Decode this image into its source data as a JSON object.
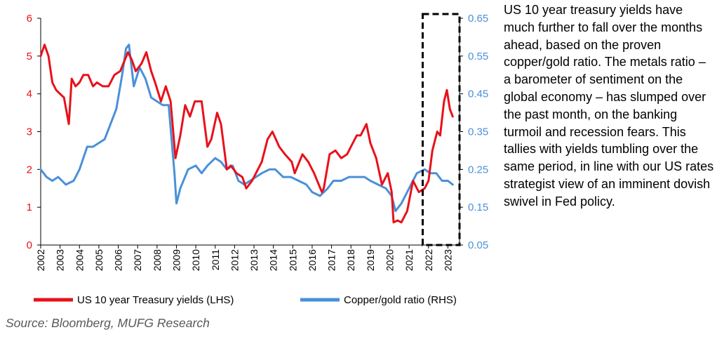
{
  "commentary": "US 10 year treasury yields have much further to fall over the months ahead, based on the proven copper/gold ratio. The metals ratio – a barometer of sentiment on the global economy – has slumped over the past month, on the banking turmoil and recession fears. This tallies with yields tumbling over the same period, in line with our US rates strategist view of an imminent dovish swivel in Fed policy.",
  "source": "Source: Bloomberg, MUFG Research",
  "colors": {
    "yields": "#e8111a",
    "ratio": "#4a90d9",
    "axis": "#000000",
    "highlight": "#000000"
  },
  "chart_data": {
    "type": "line",
    "title": "",
    "xlabel": "",
    "x_ticks": [
      "2002",
      "2003",
      "2004",
      "2005",
      "2006",
      "2007",
      "2008",
      "2009",
      "2010",
      "2011",
      "2012",
      "2013",
      "2014",
      "2015",
      "2016",
      "2017",
      "2018",
      "2019",
      "2020",
      "2021",
      "2022",
      "2023"
    ],
    "x_range": [
      2002,
      2023.6
    ],
    "left_axis": {
      "label": "US 10 year Treasury yields (LHS)",
      "ylim": [
        0,
        6
      ],
      "ticks": [
        "0",
        "1",
        "2",
        "3",
        "4",
        "5",
        "6"
      ]
    },
    "right_axis": {
      "label": "Copper/gold ratio (RHS)",
      "ylim": [
        0.05,
        0.65
      ],
      "ticks": [
        "0.05",
        "0.15",
        "0.25",
        "0.35",
        "0.45",
        "0.55",
        "0.65"
      ]
    },
    "highlight": {
      "x_start": 2021.7,
      "x_end": 2023.6,
      "style": "dashed box"
    },
    "series": [
      {
        "name": "US 10 year Treasury yields (LHS)",
        "axis": "left",
        "x": [
          2002.0,
          2002.2,
          2002.4,
          2002.6,
          2002.8,
          2003.0,
          2003.2,
          2003.45,
          2003.6,
          2003.8,
          2004.0,
          2004.2,
          2004.45,
          2004.7,
          2004.9,
          2005.2,
          2005.5,
          2005.8,
          2006.1,
          2006.5,
          2006.7,
          2006.9,
          2007.2,
          2007.45,
          2007.7,
          2007.9,
          2008.2,
          2008.45,
          2008.7,
          2008.95,
          2009.2,
          2009.45,
          2009.7,
          2009.95,
          2010.3,
          2010.6,
          2010.8,
          2011.1,
          2011.3,
          2011.6,
          2011.8,
          2012.1,
          2012.4,
          2012.6,
          2012.9,
          2013.2,
          2013.4,
          2013.7,
          2013.95,
          2014.3,
          2014.6,
          2014.95,
          2015.1,
          2015.5,
          2015.8,
          2016.1,
          2016.5,
          2016.6,
          2016.9,
          2017.2,
          2017.5,
          2017.8,
          2018.0,
          2018.3,
          2018.5,
          2018.8,
          2019.0,
          2019.3,
          2019.6,
          2019.9,
          2020.1,
          2020.2,
          2020.4,
          2020.6,
          2020.9,
          2021.2,
          2021.5,
          2021.8,
          2022.0,
          2022.2,
          2022.45,
          2022.6,
          2022.8,
          2022.95,
          2023.1,
          2023.25
        ],
        "y": [
          5.0,
          5.3,
          5.0,
          4.3,
          4.1,
          4.0,
          3.9,
          3.2,
          4.4,
          4.2,
          4.3,
          4.5,
          4.5,
          4.2,
          4.3,
          4.2,
          4.2,
          4.5,
          4.6,
          5.1,
          4.9,
          4.6,
          4.8,
          5.1,
          4.6,
          4.3,
          3.8,
          4.2,
          3.8,
          2.3,
          2.9,
          3.7,
          3.4,
          3.8,
          3.8,
          2.6,
          2.8,
          3.5,
          3.2,
          2.0,
          2.1,
          1.9,
          1.8,
          1.5,
          1.7,
          2.0,
          2.2,
          2.8,
          3.0,
          2.6,
          2.4,
          2.2,
          1.9,
          2.4,
          2.2,
          1.9,
          1.4,
          1.5,
          2.4,
          2.5,
          2.3,
          2.4,
          2.6,
          2.9,
          2.9,
          3.2,
          2.7,
          2.3,
          1.6,
          1.9,
          1.4,
          0.6,
          0.65,
          0.6,
          0.9,
          1.7,
          1.4,
          1.5,
          1.7,
          2.5,
          3.0,
          2.9,
          3.8,
          4.1,
          3.6,
          3.4
        ]
      },
      {
        "name": "Copper/gold ratio (RHS)",
        "axis": "right",
        "x": [
          2002.0,
          2002.3,
          2002.6,
          2002.9,
          2003.3,
          2003.7,
          2004.0,
          2004.4,
          2004.7,
          2005.0,
          2005.3,
          2005.6,
          2005.9,
          2006.2,
          2006.4,
          2006.55,
          2006.8,
          2007.1,
          2007.4,
          2007.7,
          2008.0,
          2008.3,
          2008.6,
          2008.9,
          2009.0,
          2009.2,
          2009.6,
          2010.0,
          2010.3,
          2010.6,
          2011.0,
          2011.3,
          2011.6,
          2011.9,
          2012.2,
          2012.5,
          2012.8,
          2013.1,
          2013.4,
          2013.8,
          2014.1,
          2014.5,
          2014.9,
          2015.3,
          2015.7,
          2016.0,
          2016.4,
          2016.8,
          2017.1,
          2017.5,
          2017.9,
          2018.3,
          2018.7,
          2019.0,
          2019.4,
          2019.8,
          2020.1,
          2020.3,
          2020.6,
          2021.0,
          2021.4,
          2021.8,
          2022.1,
          2022.4,
          2022.7,
          2023.0,
          2023.25
        ],
        "y": [
          0.25,
          0.23,
          0.22,
          0.23,
          0.21,
          0.22,
          0.25,
          0.31,
          0.31,
          0.32,
          0.33,
          0.37,
          0.41,
          0.5,
          0.57,
          0.58,
          0.47,
          0.52,
          0.49,
          0.44,
          0.43,
          0.42,
          0.42,
          0.24,
          0.16,
          0.2,
          0.25,
          0.26,
          0.24,
          0.26,
          0.28,
          0.27,
          0.25,
          0.26,
          0.22,
          0.21,
          0.22,
          0.23,
          0.24,
          0.25,
          0.25,
          0.23,
          0.23,
          0.22,
          0.21,
          0.19,
          0.18,
          0.2,
          0.22,
          0.22,
          0.23,
          0.23,
          0.23,
          0.22,
          0.21,
          0.2,
          0.18,
          0.14,
          0.16,
          0.2,
          0.24,
          0.25,
          0.24,
          0.24,
          0.22,
          0.22,
          0.21
        ]
      }
    ]
  }
}
